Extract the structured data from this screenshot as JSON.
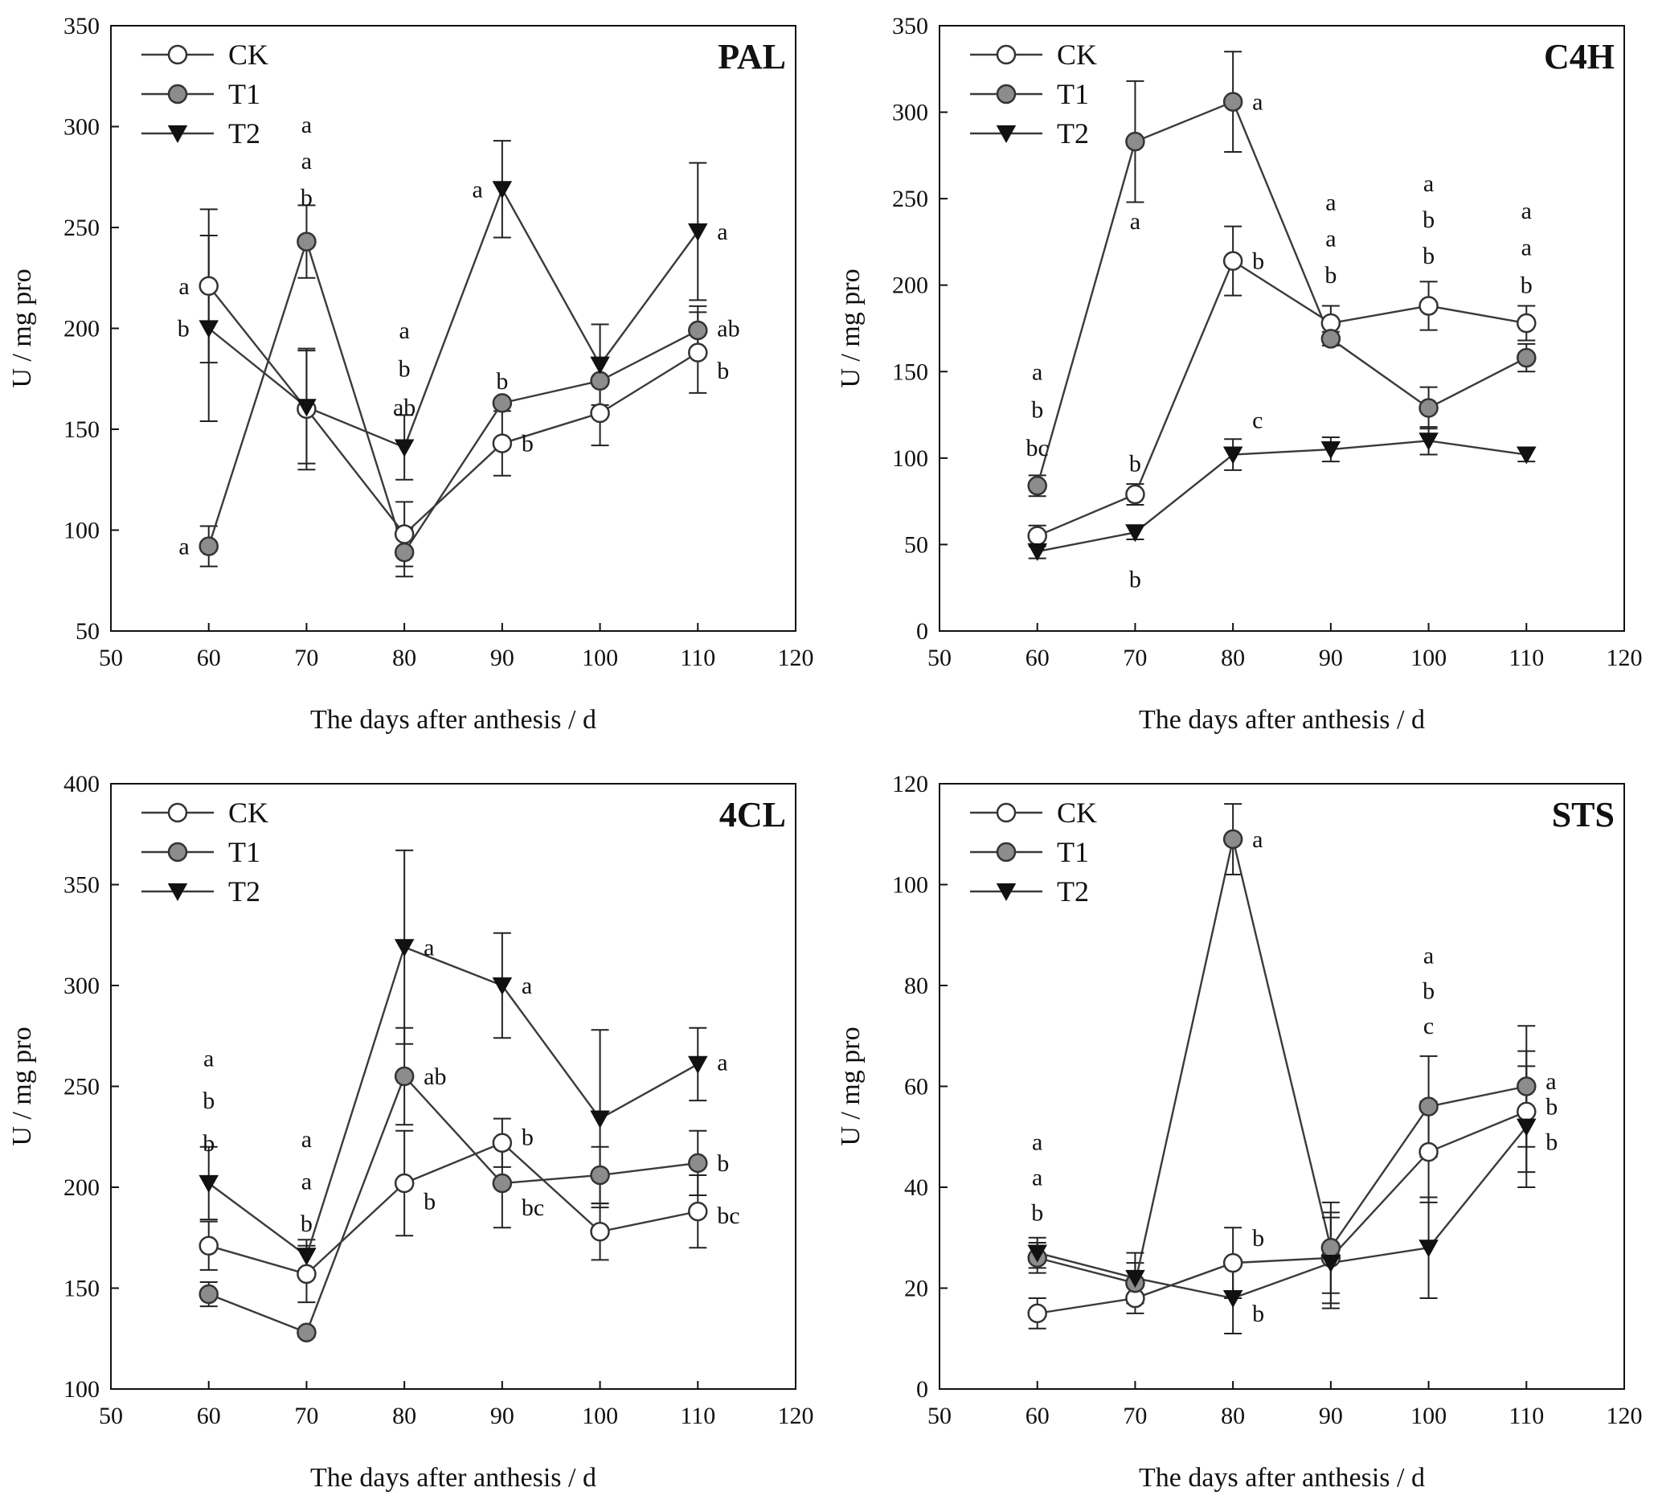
{
  "chart_data": [
    {
      "type": "line",
      "title": "PAL",
      "xlabel": "The days after anthesis / d",
      "ylabel": "U / mg pro",
      "xlim": [
        50,
        120
      ],
      "ylim": [
        50,
        350
      ],
      "xticks": [
        50,
        60,
        70,
        80,
        90,
        100,
        110,
        120
      ],
      "yticks": [
        50,
        100,
        150,
        200,
        250,
        300,
        350
      ],
      "x": [
        60,
        70,
        80,
        90,
        100,
        110
      ],
      "legend": [
        "CK",
        "T1",
        "T2"
      ],
      "series": [
        {
          "name": "CK",
          "values": [
            221,
            160,
            98,
            143,
            158,
            188
          ],
          "errors": [
            38,
            30,
            16,
            16,
            16,
            20
          ]
        },
        {
          "name": "T1",
          "values": [
            92,
            243,
            89,
            163,
            174,
            199
          ],
          "errors": [
            10,
            18,
            12,
            0,
            0,
            12
          ]
        },
        {
          "name": "T2",
          "values": [
            200,
            161,
            141,
            269,
            182,
            248
          ],
          "errors": [
            46,
            28,
            16,
            24,
            20,
            34
          ]
        }
      ],
      "letters": [
        {
          "x": 60,
          "y": 221,
          "text": "a",
          "pos": "left"
        },
        {
          "x": 60,
          "y": 200,
          "text": "b",
          "pos": "left"
        },
        {
          "x": 60,
          "y": 92,
          "text": "a",
          "pos": "left"
        },
        {
          "x": 70,
          "y": 301,
          "text": "a",
          "pos": "above"
        },
        {
          "x": 70,
          "y": 283,
          "text": "a",
          "pos": "above"
        },
        {
          "x": 70,
          "y": 265,
          "text": "b",
          "pos": "above"
        },
        {
          "x": 80,
          "y": 199,
          "text": "a",
          "pos": "above"
        },
        {
          "x": 80,
          "y": 180,
          "text": "b",
          "pos": "above"
        },
        {
          "x": 80,
          "y": 161,
          "text": "ab",
          "pos": "above"
        },
        {
          "x": 90,
          "y": 269,
          "text": "a",
          "pos": "left"
        },
        {
          "x": 90,
          "y": 174,
          "text": "b",
          "pos": "above"
        },
        {
          "x": 90,
          "y": 143,
          "text": "b",
          "pos": "right"
        },
        {
          "x": 110,
          "y": 248,
          "text": "a",
          "pos": "right"
        },
        {
          "x": 110,
          "y": 200,
          "text": "ab",
          "pos": "right"
        },
        {
          "x": 110,
          "y": 179,
          "text": "b",
          "pos": "right"
        }
      ]
    },
    {
      "type": "line",
      "title": "C4H",
      "xlabel": "The days after anthesis / d",
      "ylabel": "U / mg pro",
      "xlim": [
        50,
        120
      ],
      "ylim": [
        0,
        350
      ],
      "xticks": [
        50,
        60,
        70,
        80,
        90,
        100,
        110,
        120
      ],
      "yticks": [
        0,
        50,
        100,
        150,
        200,
        250,
        300,
        350
      ],
      "x": [
        60,
        70,
        80,
        90,
        100,
        110
      ],
      "legend": [
        "CK",
        "T1",
        "T2"
      ],
      "series": [
        {
          "name": "CK",
          "values": [
            55,
            79,
            214,
            178,
            188,
            178
          ],
          "errors": [
            6,
            6,
            20,
            10,
            14,
            10
          ]
        },
        {
          "name": "T1",
          "values": [
            84,
            283,
            306,
            169,
            129,
            158
          ],
          "errors": [
            6,
            35,
            29,
            4,
            12,
            8
          ]
        },
        {
          "name": "T2",
          "values": [
            46,
            57,
            102,
            105,
            110,
            102
          ],
          "errors": [
            4,
            4,
            9,
            7,
            8,
            4
          ]
        }
      ],
      "letters": [
        {
          "x": 60,
          "y": 150,
          "text": "a",
          "pos": "above"
        },
        {
          "x": 60,
          "y": 128,
          "text": "b",
          "pos": "above"
        },
        {
          "x": 60,
          "y": 106,
          "text": "bc",
          "pos": "above"
        },
        {
          "x": 70,
          "y": 237,
          "text": "a",
          "pos": "above"
        },
        {
          "x": 70,
          "y": 97,
          "text": "b",
          "pos": "above"
        },
        {
          "x": 70,
          "y": 30,
          "text": "b",
          "pos": "above"
        },
        {
          "x": 80,
          "y": 306,
          "text": "a",
          "pos": "right"
        },
        {
          "x": 80,
          "y": 214,
          "text": "b",
          "pos": "right"
        },
        {
          "x": 80,
          "y": 122,
          "text": "c",
          "pos": "right"
        },
        {
          "x": 90,
          "y": 248,
          "text": "a",
          "pos": "above"
        },
        {
          "x": 90,
          "y": 227,
          "text": "a",
          "pos": "above"
        },
        {
          "x": 90,
          "y": 206,
          "text": "b",
          "pos": "above"
        },
        {
          "x": 100,
          "y": 259,
          "text": "a",
          "pos": "above"
        },
        {
          "x": 100,
          "y": 238,
          "text": "b",
          "pos": "above"
        },
        {
          "x": 100,
          "y": 217,
          "text": "b",
          "pos": "above"
        },
        {
          "x": 110,
          "y": 243,
          "text": "a",
          "pos": "above"
        },
        {
          "x": 110,
          "y": 222,
          "text": "a",
          "pos": "above"
        },
        {
          "x": 110,
          "y": 200,
          "text": "b",
          "pos": "above"
        }
      ]
    },
    {
      "type": "line",
      "title": "4CL",
      "xlabel": "The days after anthesis / d",
      "ylabel": "U / mg pro",
      "xlim": [
        50,
        120
      ],
      "ylim": [
        100,
        400
      ],
      "xticks": [
        50,
        60,
        70,
        80,
        90,
        100,
        110,
        120
      ],
      "yticks": [
        100,
        150,
        200,
        250,
        300,
        350,
        400
      ],
      "x": [
        60,
        70,
        80,
        90,
        100,
        110
      ],
      "legend": [
        "CK",
        "T1",
        "T2"
      ],
      "series": [
        {
          "name": "CK",
          "values": [
            171,
            157,
            202,
            222,
            178,
            188
          ],
          "errors": [
            12,
            14,
            26,
            12,
            14,
            18
          ]
        },
        {
          "name": "T1",
          "values": [
            147,
            128,
            255,
            202,
            206,
            212
          ],
          "errors": [
            6,
            2,
            24,
            22,
            14,
            16
          ]
        },
        {
          "name": "T2",
          "values": [
            202,
            166,
            319,
            300,
            234,
            261
          ],
          "errors": [
            18,
            8,
            48,
            26,
            44,
            18
          ]
        }
      ],
      "letters": [
        {
          "x": 60,
          "y": 264,
          "text": "a",
          "pos": "above"
        },
        {
          "x": 60,
          "y": 243,
          "text": "b",
          "pos": "above"
        },
        {
          "x": 60,
          "y": 222,
          "text": "b",
          "pos": "above"
        },
        {
          "x": 70,
          "y": 224,
          "text": "a",
          "pos": "above"
        },
        {
          "x": 70,
          "y": 203,
          "text": "a",
          "pos": "above"
        },
        {
          "x": 70,
          "y": 182,
          "text": "b",
          "pos": "above"
        },
        {
          "x": 80,
          "y": 319,
          "text": "a",
          "pos": "right"
        },
        {
          "x": 80,
          "y": 255,
          "text": "ab",
          "pos": "right"
        },
        {
          "x": 80,
          "y": 193,
          "text": "b",
          "pos": "right"
        },
        {
          "x": 90,
          "y": 300,
          "text": "a",
          "pos": "right"
        },
        {
          "x": 90,
          "y": 225,
          "text": "b",
          "pos": "right"
        },
        {
          "x": 90,
          "y": 190,
          "text": "bc",
          "pos": "right"
        },
        {
          "x": 110,
          "y": 262,
          "text": "a",
          "pos": "right"
        },
        {
          "x": 110,
          "y": 212,
          "text": "b",
          "pos": "right"
        },
        {
          "x": 110,
          "y": 186,
          "text": "bc",
          "pos": "right"
        }
      ]
    },
    {
      "type": "line",
      "title": "STS",
      "xlabel": "The days after anthesis / d",
      "ylabel": "U / mg pro",
      "xlim": [
        50,
        120
      ],
      "ylim": [
        0,
        120
      ],
      "xticks": [
        50,
        60,
        70,
        80,
        90,
        100,
        110,
        120
      ],
      "yticks": [
        0,
        20,
        40,
        60,
        80,
        100,
        120
      ],
      "x": [
        60,
        70,
        80,
        90,
        100,
        110
      ],
      "legend": [
        "CK",
        "T1",
        "T2"
      ],
      "series": [
        {
          "name": "CK",
          "values": [
            15,
            18,
            25,
            26,
            47,
            55
          ],
          "errors": [
            3,
            3,
            7,
            9,
            10,
            12
          ]
        },
        {
          "name": "T1",
          "values": [
            26,
            21,
            109,
            28,
            56,
            60
          ],
          "errors": [
            3,
            4,
            7,
            9,
            10,
            12
          ]
        },
        {
          "name": "T2",
          "values": [
            27,
            22,
            18,
            25,
            28,
            52
          ],
          "errors": [
            3,
            5,
            7,
            9,
            10,
            12
          ]
        }
      ],
      "letters": [
        {
          "x": 60,
          "y": 49,
          "text": "a",
          "pos": "above"
        },
        {
          "x": 60,
          "y": 42,
          "text": "a",
          "pos": "above"
        },
        {
          "x": 60,
          "y": 35,
          "text": "b",
          "pos": "above"
        },
        {
          "x": 80,
          "y": 109,
          "text": "a",
          "pos": "right"
        },
        {
          "x": 80,
          "y": 30,
          "text": "b",
          "pos": "right"
        },
        {
          "x": 80,
          "y": 15,
          "text": "b",
          "pos": "right"
        },
        {
          "x": 100,
          "y": 86,
          "text": "a",
          "pos": "above"
        },
        {
          "x": 100,
          "y": 79,
          "text": "b",
          "pos": "above"
        },
        {
          "x": 100,
          "y": 72,
          "text": "c",
          "pos": "above"
        },
        {
          "x": 110,
          "y": 61,
          "text": "a",
          "pos": "right"
        },
        {
          "x": 110,
          "y": 56,
          "text": "b",
          "pos": "right"
        },
        {
          "x": 110,
          "y": 49,
          "text": "b",
          "pos": "right"
        }
      ]
    }
  ],
  "colors": {
    "ck_fill": "#ffffff",
    "t1_fill": "#8c8c8c",
    "t2_fill": "#111111",
    "line": "#3a3a3a",
    "axis": "#111111"
  }
}
